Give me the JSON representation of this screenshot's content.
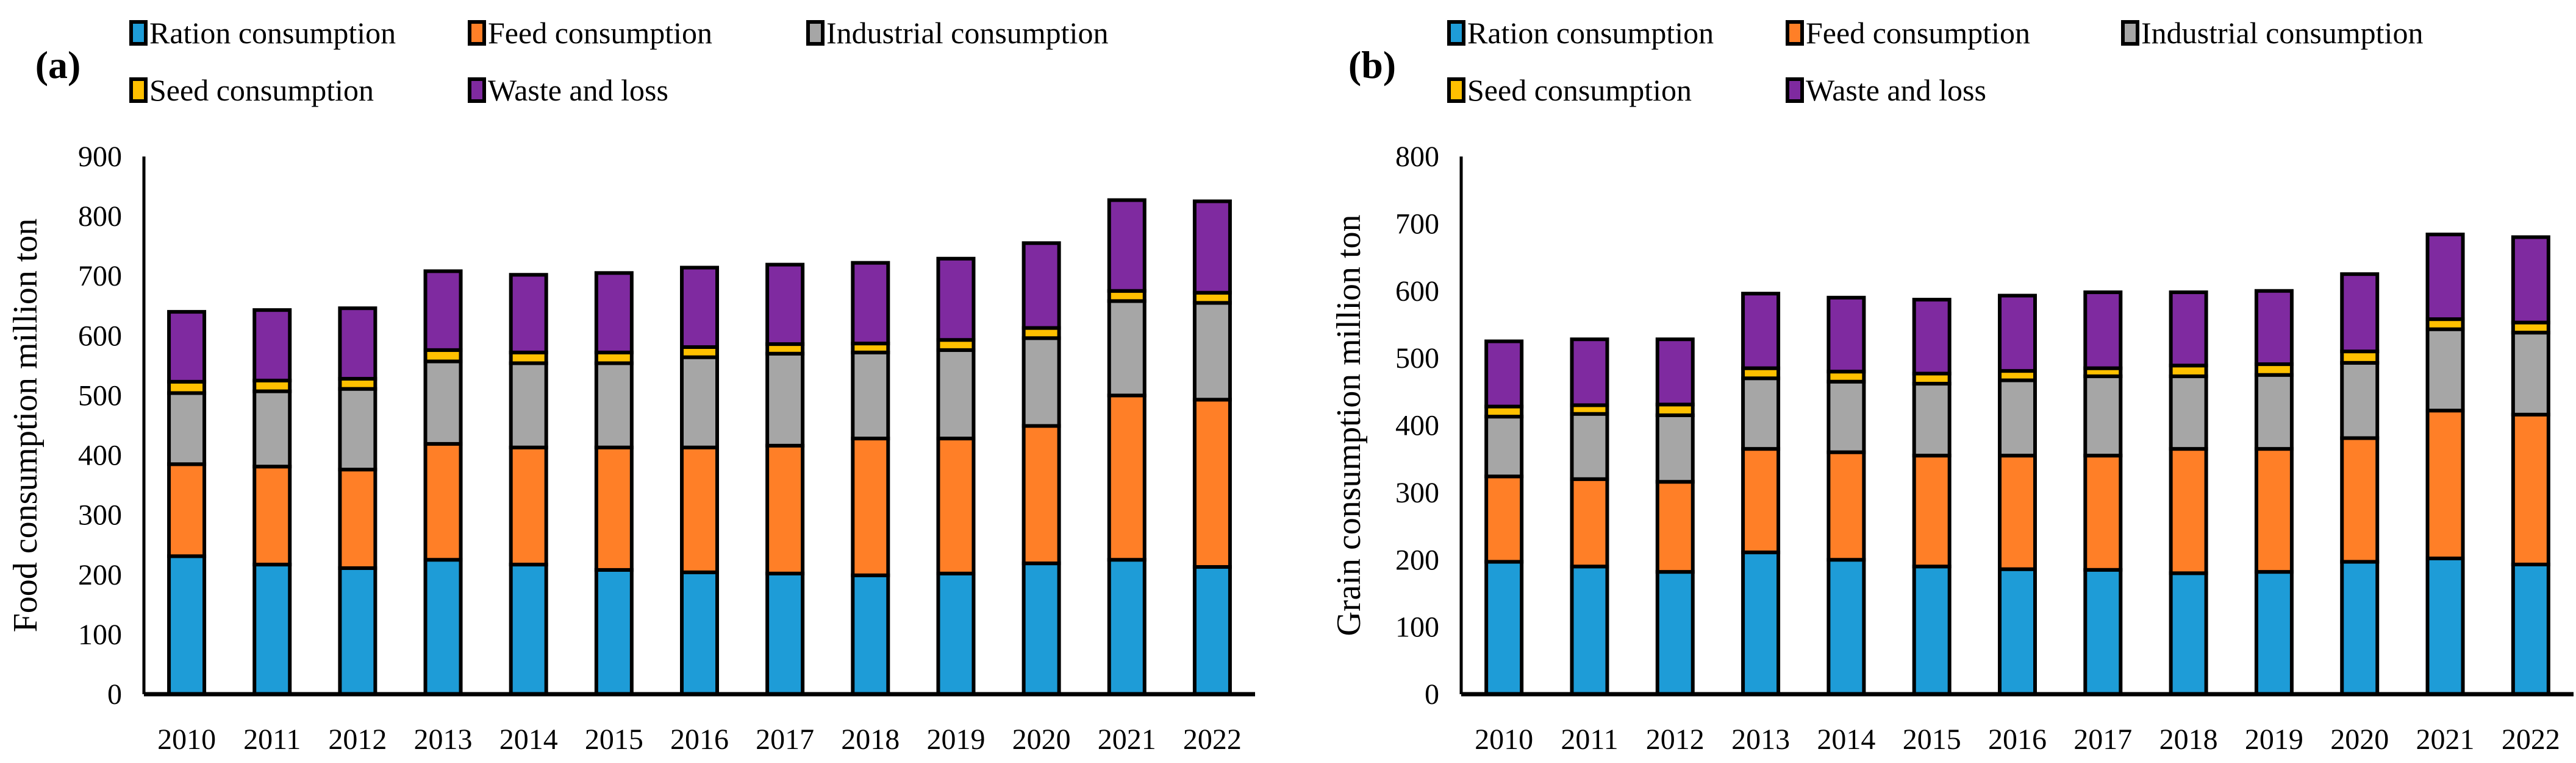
{
  "chart_data": [
    {
      "type": "bar",
      "stacked": true,
      "panel_label": "(a)",
      "ylabel": "Food consumption million ton",
      "ylim": [
        0,
        900
      ],
      "yticks": [
        0,
        100,
        200,
        300,
        400,
        500,
        600,
        700,
        800,
        900
      ],
      "grid": false,
      "legend_position": "top",
      "categories": [
        "2010",
        "2011",
        "2012",
        "2013",
        "2014",
        "2015",
        "2016",
        "2017",
        "2018",
        "2019",
        "2020",
        "2021",
        "2022"
      ],
      "series": [
        {
          "name": "Ration consumption",
          "color": "#1E9CD7",
          "values": [
            231,
            217,
            211,
            225,
            217,
            208,
            204,
            202,
            199,
            202,
            219,
            225,
            213
          ]
        },
        {
          "name": "Feed consumption",
          "color": "#FF7F27",
          "values": [
            154,
            164,
            165,
            194,
            196,
            205,
            209,
            214,
            229,
            226,
            230,
            275,
            280
          ]
        },
        {
          "name": "Industrial consumption",
          "color": "#A6A6A6",
          "values": [
            119,
            126,
            135,
            138,
            141,
            141,
            151,
            154,
            144,
            148,
            147,
            158,
            162
          ]
        },
        {
          "name": "Seed consumption",
          "color": "#FFC000",
          "values": [
            19,
            18,
            17,
            19,
            18,
            18,
            17,
            16,
            15,
            17,
            17,
            17,
            17
          ]
        },
        {
          "name": "Waste and loss",
          "color": "#7F2AA0",
          "values": [
            117,
            118,
            118,
            132,
            130,
            133,
            133,
            133,
            135,
            136,
            142,
            152,
            153
          ]
        }
      ]
    },
    {
      "type": "bar",
      "stacked": true,
      "panel_label": "(b)",
      "ylabel": "Grain consumption million ton",
      "ylim": [
        0,
        800
      ],
      "yticks": [
        0,
        100,
        200,
        300,
        400,
        500,
        600,
        700,
        800
      ],
      "grid": false,
      "legend_position": "top",
      "categories": [
        "2010",
        "2011",
        "2012",
        "2013",
        "2014",
        "2015",
        "2016",
        "2017",
        "2018",
        "2019",
        "2020",
        "2021",
        "2022"
      ],
      "series": [
        {
          "name": "Ration consumption",
          "color": "#1E9CD7",
          "values": [
            197,
            190,
            182,
            211,
            200,
            190,
            186,
            185,
            180,
            182,
            197,
            202,
            193
          ]
        },
        {
          "name": "Feed consumption",
          "color": "#FF7F27",
          "values": [
            127,
            130,
            134,
            154,
            160,
            165,
            169,
            170,
            185,
            183,
            184,
            220,
            223
          ]
        },
        {
          "name": "Industrial consumption",
          "color": "#A6A6A6",
          "values": [
            89,
            97,
            99,
            105,
            105,
            107,
            112,
            118,
            108,
            110,
            112,
            121,
            122
          ]
        },
        {
          "name": "Seed consumption",
          "color": "#FFC000",
          "values": [
            15,
            13,
            16,
            15,
            15,
            15,
            14,
            12,
            16,
            16,
            17,
            15,
            15
          ]
        },
        {
          "name": "Waste and loss",
          "color": "#7F2AA0",
          "values": [
            97,
            98,
            97,
            111,
            110,
            110,
            112,
            113,
            109,
            109,
            115,
            126,
            127
          ]
        }
      ]
    }
  ]
}
